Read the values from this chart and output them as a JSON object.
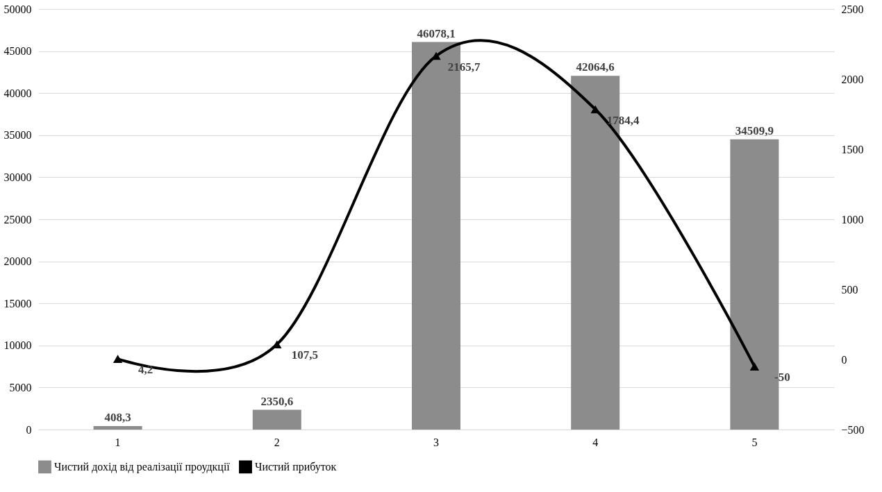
{
  "chart_data": {
    "type": "bar",
    "categories": [
      "1",
      "2",
      "3",
      "4",
      "5"
    ],
    "series": [
      {
        "name": "Чистий дохід від реалізації проудкції",
        "color": "#8c8c8c",
        "values": [
          408.3,
          2350.6,
          46078.1,
          42064.6,
          34509.9
        ],
        "value_labels": [
          "408,3",
          "2350,6",
          "46078,1",
          "42064,6",
          "34509,9"
        ]
      },
      {
        "name": "Чистий прибуток",
        "type": "line",
        "axis": "y2",
        "color": "#000000",
        "values": [
          4.2,
          107.5,
          2165.7,
          1784.4,
          -50
        ],
        "value_labels": [
          "4,2",
          "107,5",
          "2165,7",
          "1784,4",
          "-50"
        ]
      }
    ],
    "ylim": [
      0,
      50000
    ],
    "yticks": [
      0,
      5000,
      10000,
      15000,
      20000,
      25000,
      30000,
      35000,
      40000,
      45000,
      50000
    ],
    "y2lim": [
      -500,
      2500
    ],
    "y2ticks": [
      -500,
      0,
      500,
      1000,
      1500,
      2000,
      2500
    ],
    "grid": "y",
    "legend": "bottom",
    "marker": "triangle",
    "line_style": "solid"
  }
}
